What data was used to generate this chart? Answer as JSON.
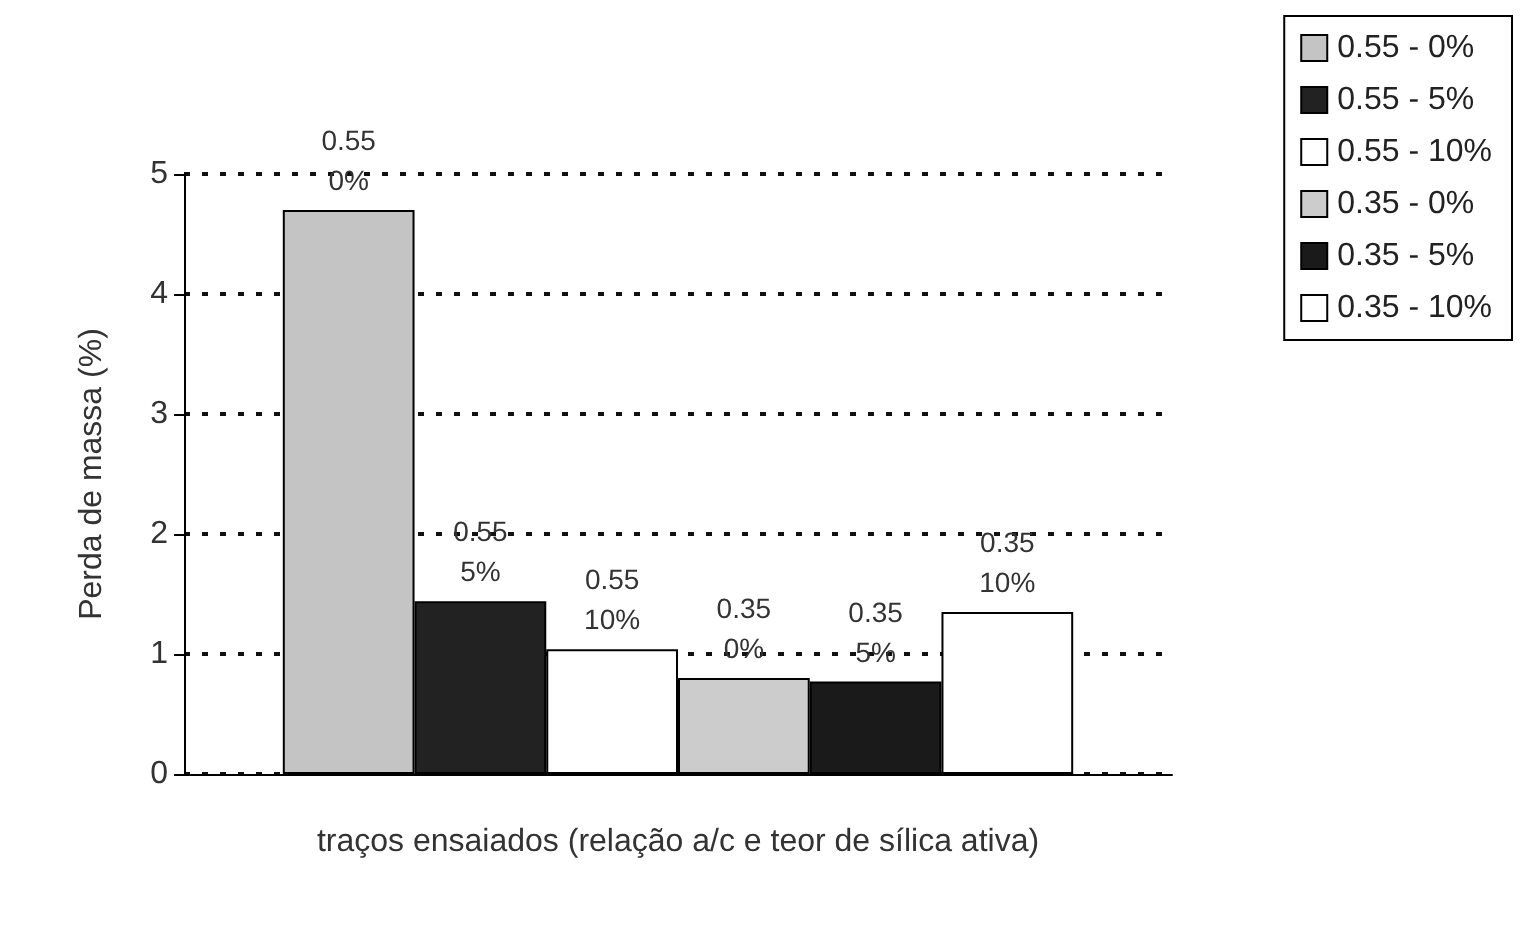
{
  "chart_data": {
    "type": "bar",
    "xlabel": "traços ensaiados (relação a/c e teor de sílica ativa)",
    "ylabel": "Perda de massa (%)",
    "categories": [
      null
    ],
    "series": [
      {
        "name": "0.55 - 0%",
        "color": "#c4c4c4",
        "values": [
          4.7
        ]
      },
      {
        "name": "0.55 - 5%",
        "color": "#222222",
        "values": [
          1.44
        ]
      },
      {
        "name": "0.55 - 10%",
        "color": "#ffffff",
        "values": [
          1.04
        ]
      },
      {
        "name": "0.35 - 0%",
        "color": "#cccccc",
        "values": [
          0.8
        ]
      },
      {
        "name": "0.35 - 5%",
        "color": "#1a1a1a",
        "values": [
          0.77
        ]
      },
      {
        "name": "0.35 - 10%",
        "color": "#ffffff",
        "values": [
          1.35
        ]
      }
    ],
    "annotations": [
      "0.55\n0%",
      "0.55\n5%",
      "0.55\n10%",
      "0.35\n0%",
      "0.35\n5%",
      "0.35\n10%"
    ],
    "ylim": [
      0,
      5
    ],
    "yticks": [
      0,
      1,
      2,
      3,
      4,
      5
    ],
    "grid": "y",
    "legend": "top right"
  }
}
